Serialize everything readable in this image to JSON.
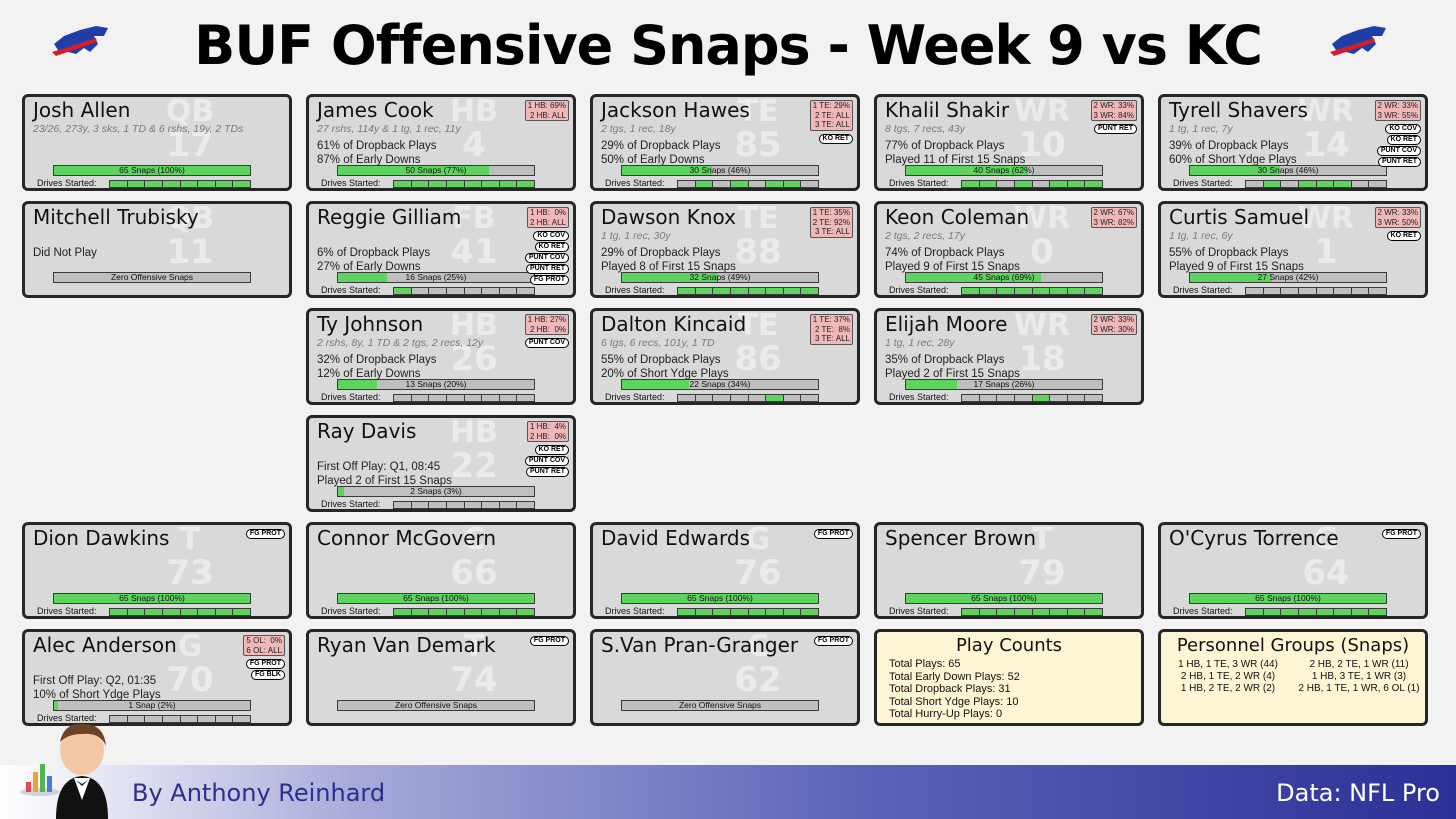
{
  "title": "BUF Offensive Snaps - Week 9 vs KC",
  "footer": {
    "author": "By Anthony Reinhard",
    "source": "Data: NFL Pro"
  },
  "labels": {
    "drives_started": "Drives Started:"
  },
  "colors": {
    "snap_fill": "#5fd35f",
    "card_bg": "#d9d9d9",
    "personnel_box": "#f0b8b8",
    "info_bg": "#fdf5d3"
  },
  "players": [
    {
      "name": "Josh Allen",
      "pos": "QB",
      "number": "17",
      "stat_line": "23/26, 273y, 3 sks, 1 TD & 6 rshs, 19y, 2 TDs",
      "lines": [],
      "snaps_label": "65 Snaps (100%)",
      "snap_pct": 1.0,
      "drives": [
        1,
        1,
        1,
        1,
        1,
        1,
        1,
        1
      ],
      "personnel": "",
      "tags": []
    },
    {
      "name": "James Cook",
      "pos": "HB",
      "number": "4",
      "stat_line": "27 rshs, 114y & 1 tg, 1 rec, 11y",
      "lines": [
        "61% of Dropback Plays",
        "87% of Early Downs"
      ],
      "snaps_label": "50 Snaps (77%)",
      "snap_pct": 0.77,
      "drives": [
        1,
        1,
        1,
        1,
        1,
        1,
        1,
        1
      ],
      "personnel": "1 HB: 69%\n2 HB: ALL",
      "tags": []
    },
    {
      "name": "Jackson Hawes",
      "pos": "TE",
      "number": "85",
      "stat_line": "2 tgs, 1 rec, 18y",
      "lines": [
        "29% of Dropback Plays",
        "50% of Early Downs"
      ],
      "snaps_label": "30 Snaps (46%)",
      "snap_pct": 0.46,
      "drives": [
        0,
        1,
        0,
        1,
        0,
        1,
        1,
        0
      ],
      "personnel": "1 TE: 29%\n2 TE: ALL\n3 TE: ALL",
      "tags": [
        "KO RET"
      ]
    },
    {
      "name": "Khalil Shakir",
      "pos": "WR",
      "number": "10",
      "stat_line": "8 tgs, 7 recs, 43y",
      "lines": [
        "77% of Dropback Plays",
        "Played 11 of First 15 Snaps"
      ],
      "snaps_label": "40 Snaps (62%)",
      "snap_pct": 0.62,
      "drives": [
        1,
        1,
        0,
        1,
        0,
        1,
        1,
        1
      ],
      "personnel": "2 WR: 33%\n3 WR: 84%",
      "tags": [
        "PUNT RET"
      ]
    },
    {
      "name": "Tyrell Shavers",
      "pos": "WR",
      "number": "14",
      "stat_line": "1 tg, 1 rec, 7y",
      "lines": [
        "39% of Dropback Plays",
        "60% of Short Ydge Plays"
      ],
      "snaps_label": "30 Snaps (46%)",
      "snap_pct": 0.46,
      "drives": [
        0,
        1,
        0,
        1,
        1,
        1,
        0,
        0
      ],
      "personnel": "2 WR: 33%\n3 WR: 55%",
      "tags": [
        "KO COV",
        "KO RET",
        "PUNT COV",
        "PUNT RET"
      ]
    },
    {
      "name": "Mitchell Trubisky",
      "pos": "QB",
      "number": "11",
      "stat_line": "",
      "lines": [
        "Did Not Play"
      ],
      "snaps_label": "Zero Offensive Snaps",
      "snap_pct": 0,
      "drives": [],
      "personnel": "",
      "tags": []
    },
    {
      "name": "Reggie Gilliam",
      "pos": "FB",
      "number": "41",
      "stat_line": "",
      "lines": [
        "6% of Dropback Plays",
        "27% of Early Downs"
      ],
      "snaps_label": "16 Snaps (25%)",
      "snap_pct": 0.25,
      "drives": [
        1,
        0,
        0,
        0,
        0,
        0,
        0,
        0
      ],
      "personnel": "1 HB:  0%\n2 HB: ALL",
      "tags": [
        "KO COV",
        "KO RET",
        "PUNT COV",
        "PUNT RET",
        "FG PROT"
      ]
    },
    {
      "name": "Dawson Knox",
      "pos": "TE",
      "number": "88",
      "stat_line": "1 tg, 1 rec, 30y",
      "lines": [
        "29% of Dropback Plays",
        "Played 8 of First 15 Snaps"
      ],
      "snaps_label": "32 Snaps (49%)",
      "snap_pct": 0.49,
      "drives": [
        1,
        1,
        1,
        1,
        1,
        1,
        1,
        1
      ],
      "personnel": "1 TE: 35%\n2 TE: 92%\n3 TE: ALL",
      "tags": []
    },
    {
      "name": "Keon Coleman",
      "pos": "WR",
      "number": "0",
      "stat_line": "2 tgs, 2 recs, 17y",
      "lines": [
        "74% of Dropback Plays",
        "Played 9 of First 15 Snaps"
      ],
      "snaps_label": "45 Snaps (69%)",
      "snap_pct": 0.69,
      "drives": [
        1,
        1,
        1,
        1,
        1,
        1,
        1,
        1
      ],
      "personnel": "2 WR: 67%\n3 WR: 82%",
      "tags": []
    },
    {
      "name": "Curtis Samuel",
      "pos": "WR",
      "number": "1",
      "stat_line": "1 tg, 1 rec, 6y",
      "lines": [
        "55% of Dropback Plays",
        "Played 9 of First 15 Snaps"
      ],
      "snaps_label": "27 Snaps (42%)",
      "snap_pct": 0.42,
      "drives": [
        0,
        0,
        0,
        0,
        0,
        0,
        0,
        0
      ],
      "personnel": "2 WR: 33%\n3 WR: 50%",
      "tags": [
        "KO RET"
      ]
    },
    {
      "name": "Ty Johnson",
      "pos": "HB",
      "number": "26",
      "stat_line": "2 rshs, 8y, 1 TD & 2 tgs, 2 recs, 12y",
      "lines": [
        "32% of Dropback Plays",
        "12% of Early Downs"
      ],
      "snaps_label": "13 Snaps (20%)",
      "snap_pct": 0.2,
      "drives": [
        0,
        0,
        0,
        0,
        0,
        0,
        0,
        0
      ],
      "personnel": "1 HB: 27%\n2 HB:  0%",
      "tags": [
        "PUNT COV"
      ]
    },
    {
      "name": "Dalton Kincaid",
      "pos": "TE",
      "number": "86",
      "stat_line": "6 tgs, 6 recs, 101y, 1 TD",
      "lines": [
        "55% of Dropback Plays",
        "20% of Short Ydge Plays"
      ],
      "snaps_label": "22 Snaps (34%)",
      "snap_pct": 0.34,
      "drives": [
        0,
        0,
        0,
        0,
        0,
        1,
        0,
        0
      ],
      "personnel": "1 TE: 37%\n2 TE:  8%\n3 TE: ALL",
      "tags": []
    },
    {
      "name": "Elijah Moore",
      "pos": "WR",
      "number": "18",
      "stat_line": "1 tg, 1 rec, 28y",
      "lines": [
        "35% of Dropback Plays",
        "Played 2 of First 15 Snaps"
      ],
      "snaps_label": "17 Snaps (26%)",
      "snap_pct": 0.26,
      "drives": [
        0,
        0,
        0,
        0,
        1,
        0,
        0,
        0
      ],
      "personnel": "2 WR: 33%\n3 WR: 30%",
      "tags": []
    },
    {
      "name": "Ray Davis",
      "pos": "HB",
      "number": "22",
      "stat_line": "",
      "lines": [
        "First Off Play: Q1, 08:45",
        "Played 2 of First 15 Snaps"
      ],
      "snaps_label": "2 Snaps (3%)",
      "snap_pct": 0.03,
      "drives": [
        0,
        0,
        0,
        0,
        0,
        0,
        0,
        0
      ],
      "personnel": "1 HB:  4%\n2 HB:  0%",
      "tags": [
        "KO RET",
        "PUNT COV",
        "PUNT RET"
      ]
    },
    {
      "name": "Dion Dawkins",
      "pos": "T",
      "number": "73",
      "stat_line": "",
      "lines": [],
      "snaps_label": "65 Snaps (100%)",
      "snap_pct": 1.0,
      "drives": [
        1,
        1,
        1,
        1,
        1,
        1,
        1,
        1
      ],
      "personnel": "",
      "tags": [
        "FG PROT"
      ]
    },
    {
      "name": "Connor McGovern",
      "pos": "C",
      "number": "66",
      "stat_line": "",
      "lines": [],
      "snaps_label": "65 Snaps (100%)",
      "snap_pct": 1.0,
      "drives": [
        1,
        1,
        1,
        1,
        1,
        1,
        1,
        1
      ],
      "personnel": "",
      "tags": []
    },
    {
      "name": "David Edwards",
      "pos": "G",
      "number": "76",
      "stat_line": "",
      "lines": [],
      "snaps_label": "65 Snaps (100%)",
      "snap_pct": 1.0,
      "drives": [
        1,
        1,
        1,
        1,
        1,
        1,
        1,
        1
      ],
      "personnel": "",
      "tags": [
        "FG PROT"
      ]
    },
    {
      "name": "Spencer Brown",
      "pos": "T",
      "number": "79",
      "stat_line": "",
      "lines": [],
      "snaps_label": "65 Snaps (100%)",
      "snap_pct": 1.0,
      "drives": [
        1,
        1,
        1,
        1,
        1,
        1,
        1,
        1
      ],
      "personnel": "",
      "tags": []
    },
    {
      "name": "O'Cyrus Torrence",
      "pos": "G",
      "number": "64",
      "stat_line": "",
      "lines": [],
      "snaps_label": "65 Snaps (100%)",
      "snap_pct": 1.0,
      "drives": [
        1,
        1,
        1,
        1,
        1,
        1,
        1,
        1
      ],
      "personnel": "",
      "tags": [
        "FG PROT"
      ]
    },
    {
      "name": "Alec Anderson",
      "pos": "G",
      "number": "70",
      "stat_line": "",
      "lines": [
        "First Off Play: Q2, 01:35",
        "10% of Short Ydge Plays"
      ],
      "snaps_label": "1 Snap (2%)",
      "snap_pct": 0.02,
      "drives": [
        0,
        0,
        0,
        0,
        0,
        0,
        0,
        0
      ],
      "personnel": "5 OL:  0%\n6 OL: ALL",
      "tags": [
        "FG PROT",
        "FG BLK"
      ]
    },
    {
      "name": "Ryan Van Demark",
      "pos": "T",
      "number": "74",
      "stat_line": "",
      "lines": [],
      "snaps_label": "Zero Offensive Snaps",
      "snap_pct": 0,
      "drives": [],
      "personnel": "",
      "tags": [
        "FG PROT"
      ]
    },
    {
      "name": "S.Van Pran-Granger",
      "pos": "C",
      "number": "62",
      "stat_line": "",
      "lines": [],
      "snaps_label": "Zero Offensive Snaps",
      "snap_pct": 0,
      "drives": [],
      "personnel": "",
      "tags": [
        "FG PROT"
      ]
    }
  ],
  "play_counts": {
    "title": "Play Counts",
    "lines": [
      "Total Plays: 65",
      "Total Early Down Plays: 52",
      "Total Dropback Plays: 31",
      "Total Short Ydge Plays: 10",
      "Total Hurry-Up Plays: 0"
    ]
  },
  "personnel_groups": {
    "title": "Personnel Groups (Snaps)",
    "left": [
      "1 HB, 1 TE, 3 WR (44)",
      "2 HB, 1 TE, 2 WR (4)",
      "1 HB, 2 TE, 2 WR (2)"
    ],
    "right": [
      "2 HB, 2 TE, 1 WR (11)",
      "1 HB, 3 TE, 1 WR (3)",
      "2 HB, 1 TE, 1 WR, 6 OL (1)"
    ]
  }
}
